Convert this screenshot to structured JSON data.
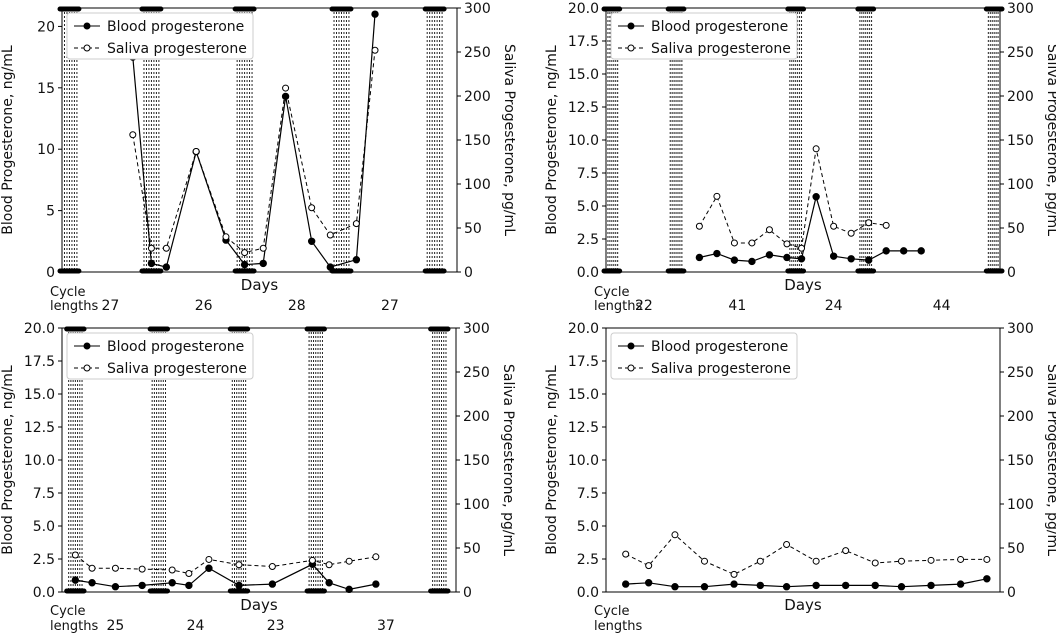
{
  "chart_data": [
    {
      "type": "line",
      "panel": "top-left",
      "ylabel_left": "Blood Progesterone, ng/mL",
      "ylabel_right": "Saliva Progesterone, pg/mL",
      "xlabel": "Days",
      "ylim_left": [
        0,
        21.5
      ],
      "ylim_right": [
        0,
        300
      ],
      "yticks_left": [
        "0",
        "5",
        "10",
        "15",
        "20"
      ],
      "ytick_values_left": [
        0,
        5,
        10,
        15,
        20
      ],
      "yticks_right": [
        "0",
        "50",
        "100",
        "150",
        "200",
        "250",
        "300"
      ],
      "ytick_values_right": [
        0,
        50,
        100,
        150,
        200,
        250,
        300
      ],
      "xlim": [
        0,
        106
      ],
      "menses": [
        [
          0,
          4
        ],
        [
          22,
          26
        ],
        [
          47,
          51
        ],
        [
          73,
          77
        ],
        [
          98,
          102
        ]
      ],
      "series": [
        {
          "name": "Blood progesterone",
          "axis": "left",
          "style": "solid-filled",
          "x": [
            19,
            24,
            28,
            36,
            44,
            49,
            54,
            60,
            67,
            72,
            79,
            84
          ],
          "y": [
            17.5,
            0.7,
            0.4,
            9.8,
            2.6,
            0.6,
            0.7,
            14.3,
            2.5,
            0.4,
            1.0,
            21.0
          ]
        },
        {
          "name": "Saliva progesterone",
          "axis": "right",
          "style": "dashed-open",
          "x": [
            19,
            24,
            28,
            36,
            44,
            49,
            54,
            60,
            67,
            72,
            79,
            84
          ],
          "y": [
            156,
            27,
            27,
            137,
            40,
            22,
            27,
            209,
            73,
            42,
            55,
            252
          ]
        }
      ],
      "legend": [
        "Blood progesterone",
        "Saliva progesterone"
      ],
      "legend_position": "top-left",
      "cycle_header": [
        "Cycle",
        "lengths"
      ],
      "cycle_lengths": [
        {
          "label": "27",
          "x": 13
        },
        {
          "label": "26",
          "x": 38
        },
        {
          "label": "28",
          "x": 63
        },
        {
          "label": "27",
          "x": 88
        }
      ]
    },
    {
      "type": "line",
      "panel": "top-right",
      "ylabel_left": "Blood Progesterone, ng/mL",
      "ylabel_right": "Saliva Progesterone, pg/mL",
      "xlabel": "Days",
      "ylim_left": [
        0,
        20
      ],
      "ylim_right": [
        0,
        300
      ],
      "yticks_left": [
        "0.0",
        "2.5",
        "5.0",
        "7.5",
        "10.0",
        "12.5",
        "15.0",
        "17.5",
        "20.0"
      ],
      "ytick_values_left": [
        0,
        2.5,
        5,
        7.5,
        10,
        12.5,
        15,
        17.5,
        20
      ],
      "yticks_right": [
        "0",
        "50",
        "100",
        "150",
        "200",
        "250",
        "300"
      ],
      "ytick_values_right": [
        0,
        50,
        100,
        150,
        200,
        250,
        300
      ],
      "xlim": [
        0,
        135
      ],
      "menses": [
        [
          0,
          4
        ],
        [
          22,
          26
        ],
        [
          63,
          67
        ],
        [
          87,
          91
        ],
        [
          131,
          135
        ]
      ],
      "series": [
        {
          "name": "Blood progesterone",
          "axis": "left",
          "style": "solid-filled",
          "x": [
            32,
            38,
            44,
            50,
            56,
            62,
            67,
            72,
            78,
            84,
            90,
            96,
            102,
            108
          ],
          "y": [
            1.1,
            1.4,
            0.9,
            0.8,
            1.3,
            1.1,
            1.0,
            5.7,
            1.2,
            1.0,
            0.9,
            1.6,
            1.6,
            1.6
          ]
        },
        {
          "name": "Saliva progesterone",
          "axis": "right",
          "style": "dashed-open",
          "x": [
            32,
            38,
            44,
            50,
            56,
            62,
            67,
            72,
            78,
            84,
            90,
            96
          ],
          "y": [
            52,
            86,
            33,
            33,
            48,
            32,
            27,
            140,
            52,
            44,
            56,
            53
          ]
        }
      ],
      "legend": [
        "Blood progesterone",
        "Saliva progesterone"
      ],
      "legend_position": "top-left",
      "cycle_header": [
        "Cycle",
        "lengths"
      ],
      "cycle_lengths": [
        {
          "label": "22",
          "x": 13
        },
        {
          "label": "41",
          "x": 45
        },
        {
          "label": "24",
          "x": 78
        },
        {
          "label": "44",
          "x": 115
        }
      ]
    },
    {
      "type": "line",
      "panel": "bottom-left",
      "ylabel_left": "Blood Progesterone, ng/mL",
      "ylabel_right": "Saliva Progesterone, pg/mL",
      "xlabel": "Days",
      "ylim_left": [
        0,
        20
      ],
      "ylim_right": [
        0,
        300
      ],
      "yticks_left": [
        "0.0",
        "2.5",
        "5.0",
        "7.5",
        "10.0",
        "12.5",
        "15.0",
        "17.5",
        "20.0"
      ],
      "ytick_values_left": [
        0,
        2.5,
        5,
        7.5,
        10,
        12.5,
        15,
        17.5,
        20
      ],
      "yticks_right": [
        "0",
        "50",
        "100",
        "150",
        "200",
        "250",
        "300"
      ],
      "ytick_values_right": [
        0,
        50,
        100,
        150,
        200,
        250,
        300
      ],
      "xlim": [
        0,
        118
      ],
      "menses": [
        [
          2,
          6
        ],
        [
          27,
          31
        ],
        [
          51,
          55
        ],
        [
          74,
          78
        ],
        [
          111,
          115
        ]
      ],
      "series": [
        {
          "name": "Blood progesterone",
          "axis": "left",
          "style": "solid-filled",
          "x": [
            4,
            9,
            16,
            24,
            33,
            38,
            44,
            53,
            63,
            75,
            80,
            86,
            94
          ],
          "y": [
            0.9,
            0.7,
            0.4,
            0.5,
            0.7,
            0.5,
            1.8,
            0.5,
            0.6,
            2.1,
            0.7,
            0.2,
            0.6
          ]
        },
        {
          "name": "Saliva progesterone",
          "axis": "right",
          "style": "dashed-open",
          "x": [
            4,
            9,
            16,
            24,
            33,
            38,
            44,
            53,
            63,
            75,
            80,
            86,
            94
          ],
          "y": [
            42,
            27,
            27,
            26,
            25,
            21,
            37,
            31,
            29,
            36,
            31,
            35,
            40
          ]
        }
      ],
      "legend": [
        "Blood progesterone",
        "Saliva progesterone"
      ],
      "legend_position": "top-left",
      "cycle_header": [
        "Cycle",
        "lengths"
      ],
      "cycle_lengths": [
        {
          "label": "25",
          "x": 16
        },
        {
          "label": "24",
          "x": 40
        },
        {
          "label": "23",
          "x": 64
        },
        {
          "label": "37",
          "x": 97
        }
      ]
    },
    {
      "type": "line",
      "panel": "bottom-right",
      "ylabel_left": "Blood Progesterone, ng/mL",
      "ylabel_right": "Saliva Progesterone, pg/mL",
      "xlabel": "Days",
      "ylim_left": [
        0,
        20
      ],
      "ylim_right": [
        0,
        300
      ],
      "yticks_left": [
        "0.0",
        "2.5",
        "5.0",
        "7.5",
        "10.0",
        "12.5",
        "15.0",
        "17.5",
        "20.0"
      ],
      "ytick_values_left": [
        0,
        2.5,
        5,
        7.5,
        10,
        12.5,
        15,
        17.5,
        20
      ],
      "yticks_right": [
        "0",
        "50",
        "100",
        "150",
        "200",
        "250",
        "300"
      ],
      "ytick_values_right": [
        0,
        50,
        100,
        150,
        200,
        250,
        300
      ],
      "xlim": [
        0,
        120
      ],
      "menses": [],
      "series": [
        {
          "name": "Blood progesterone",
          "axis": "left",
          "style": "solid-filled",
          "x": [
            6,
            13,
            21,
            30,
            39,
            47,
            55,
            64,
            73,
            82,
            90,
            99,
            108,
            116
          ],
          "y": [
            0.6,
            0.7,
            0.4,
            0.4,
            0.6,
            0.5,
            0.4,
            0.5,
            0.5,
            0.5,
            0.4,
            0.5,
            0.6,
            1.0
          ]
        },
        {
          "name": "Saliva progesterone",
          "axis": "right",
          "style": "dashed-open",
          "x": [
            6,
            13,
            21,
            30,
            39,
            47,
            55,
            64,
            73,
            82,
            90,
            99,
            108,
            116
          ],
          "y": [
            43,
            30,
            65,
            35,
            20,
            35,
            54,
            35,
            47,
            33,
            35,
            36,
            37,
            37
          ]
        }
      ],
      "legend": [
        "Blood progesterone",
        "Saliva progesterone"
      ],
      "legend_position": "top-left",
      "cycle_header": [
        "Cycle",
        "lengths"
      ],
      "cycle_lengths": []
    }
  ]
}
